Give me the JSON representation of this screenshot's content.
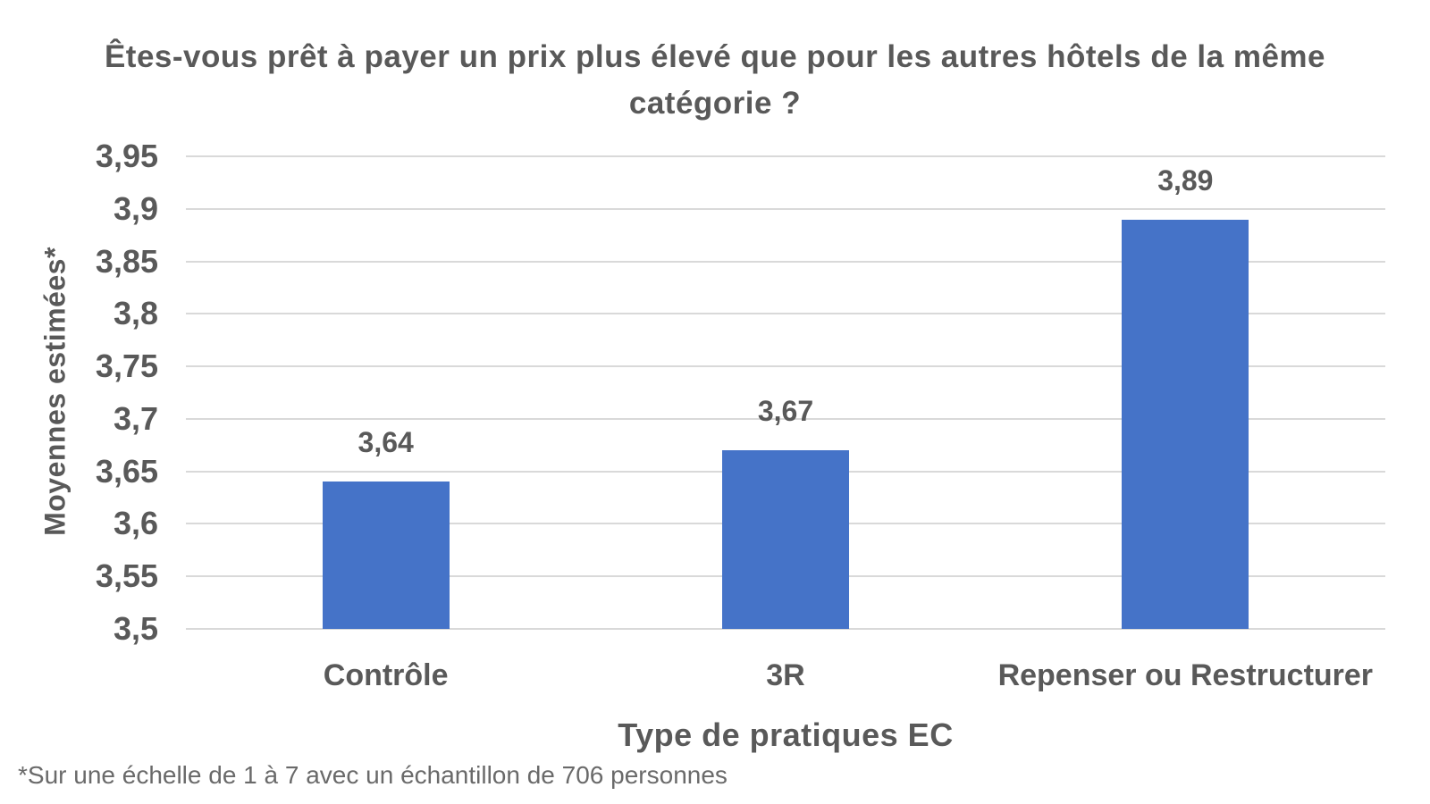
{
  "chart_data": {
    "type": "bar",
    "title": "Êtes-vous prêt à payer un prix plus élevé que pour les autres hôtels de la même catégorie ?",
    "title_lines": [
      "Êtes-vous prêt à payer un prix plus élevé que pour les autres hôtels de la même",
      "catégorie ?"
    ],
    "xlabel": "Type de pratiques EC",
    "ylabel": "Moyennes estimées*",
    "footnote": "*Sur une échelle de 1 à 7 avec un échantillon de 706 personnes",
    "categories": [
      "Contrôle",
      "3R",
      "Repenser ou Restructurer"
    ],
    "values": [
      3.64,
      3.67,
      3.89
    ],
    "value_labels": [
      "3,64",
      "3,67",
      "3,89"
    ],
    "ylim": [
      3.5,
      3.95
    ],
    "yticks": [
      {
        "label": "3,5",
        "value": 3.5
      },
      {
        "label": "3,55",
        "value": 3.55
      },
      {
        "label": "3,6",
        "value": 3.6
      },
      {
        "label": "3,65",
        "value": 3.65
      },
      {
        "label": "3,7",
        "value": 3.7
      },
      {
        "label": "3,75",
        "value": 3.75
      },
      {
        "label": "3,8",
        "value": 3.8
      },
      {
        "label": "3,85",
        "value": 3.85
      },
      {
        "label": "3,9",
        "value": 3.9
      },
      {
        "label": "3,95",
        "value": 3.95
      }
    ],
    "grid": true,
    "legend": false,
    "colors": {
      "bar": "#4573C8",
      "gridline": "#D9D9D9",
      "text": "#595959",
      "footnote_text": "#6A6A6A"
    }
  }
}
